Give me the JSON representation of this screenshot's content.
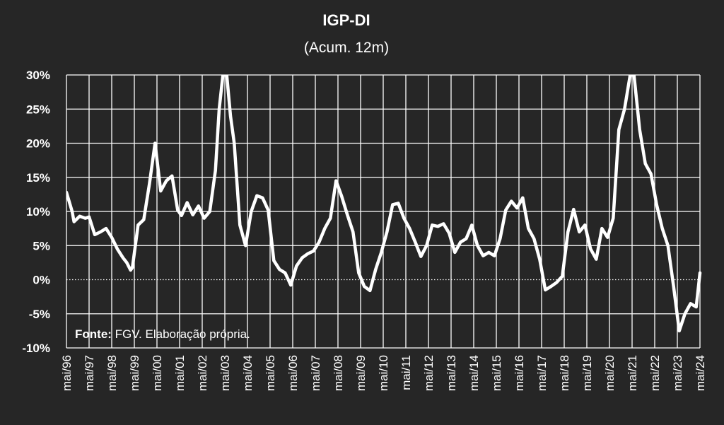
{
  "chart_data": {
    "type": "line",
    "title": "IGP-DI",
    "subtitle": "(Acum. 12m)",
    "xlabel": "",
    "ylabel": "",
    "ylim": [
      -10,
      30
    ],
    "y_unit": "%",
    "y_ticks": [
      "30%",
      "25%",
      "20%",
      "15%",
      "10%",
      "5%",
      "0%",
      "-5%",
      "-10%"
    ],
    "x_ticks": [
      "mai/96",
      "mai/97",
      "mai/98",
      "mai/99",
      "mai/00",
      "mai/01",
      "mai/02",
      "mai/03",
      "mai/04",
      "mai/05",
      "mai/06",
      "mai/07",
      "mai/08",
      "mai/09",
      "mai/10",
      "mai/11",
      "mai/12",
      "mai/13",
      "mai/14",
      "mai/15",
      "mai/16",
      "mai/17",
      "mai/18",
      "mai/19",
      "mai/20",
      "mai/21",
      "mai/22",
      "mai/23",
      "mai/24"
    ],
    "grid": true,
    "zero_line": "dotted",
    "colors": {
      "background": "#262626",
      "line": "#ffffff",
      "grid": "#ffffff"
    },
    "source": {
      "bold": "Fonte:",
      "text": " FGV. Elaboração própria."
    },
    "series": [
      {
        "points": [
          [
            "1996-05",
            12.8
          ],
          [
            "1996-08",
            10.0
          ],
          [
            "1996-09",
            8.5
          ],
          [
            "1996-12",
            9.3
          ],
          [
            "1997-03",
            9.0
          ],
          [
            "1997-05",
            9.2
          ],
          [
            "1997-08",
            6.6
          ],
          [
            "1997-11",
            7.0
          ],
          [
            "1998-02",
            7.5
          ],
          [
            "1998-05",
            6.2
          ],
          [
            "1998-08",
            4.5
          ],
          [
            "1998-11",
            3.2
          ],
          [
            "1999-01",
            2.5
          ],
          [
            "1999-03",
            1.4
          ],
          [
            "1999-04",
            1.8
          ],
          [
            "1999-07",
            8.0
          ],
          [
            "1999-10",
            8.8
          ],
          [
            "2000-01",
            14.0
          ],
          [
            "2000-04",
            20.0
          ],
          [
            "2000-07",
            13.0
          ],
          [
            "2000-10",
            14.5
          ],
          [
            "2001-01",
            15.2
          ],
          [
            "2001-04",
            10.2
          ],
          [
            "2001-06",
            9.4
          ],
          [
            "2001-09",
            11.3
          ],
          [
            "2001-12",
            9.5
          ],
          [
            "2002-03",
            10.8
          ],
          [
            "2002-06",
            9.0
          ],
          [
            "2002-09",
            10.0
          ],
          [
            "2002-12",
            16.0
          ],
          [
            "2003-02",
            25.0
          ],
          [
            "2003-04",
            30.0
          ],
          [
            "2003-06",
            30.0
          ],
          [
            "2003-08",
            24.0
          ],
          [
            "2003-10",
            20.0
          ],
          [
            "2004-01",
            8.0
          ],
          [
            "2004-04",
            5.0
          ],
          [
            "2004-07",
            10.0
          ],
          [
            "2004-10",
            12.3
          ],
          [
            "2005-01",
            12.0
          ],
          [
            "2005-04",
            10.2
          ],
          [
            "2005-07",
            2.8
          ],
          [
            "2005-10",
            1.5
          ],
          [
            "2006-01",
            1.0
          ],
          [
            "2006-04",
            -0.8
          ],
          [
            "2006-07",
            2.0
          ],
          [
            "2006-10",
            3.2
          ],
          [
            "2007-01",
            3.8
          ],
          [
            "2007-04",
            4.2
          ],
          [
            "2007-07",
            5.5
          ],
          [
            "2007-10",
            7.5
          ],
          [
            "2008-01",
            9.0
          ],
          [
            "2008-04",
            14.5
          ],
          [
            "2008-07",
            12.2
          ],
          [
            "2008-10",
            9.5
          ],
          [
            "2009-01",
            7.0
          ],
          [
            "2009-04",
            1.0
          ],
          [
            "2009-07",
            -1.0
          ],
          [
            "2009-10",
            -1.6
          ],
          [
            "2010-01",
            1.5
          ],
          [
            "2010-04",
            4.0
          ],
          [
            "2010-07",
            7.0
          ],
          [
            "2010-10",
            11.0
          ],
          [
            "2011-01",
            11.2
          ],
          [
            "2011-04",
            9.0
          ],
          [
            "2011-07",
            7.5
          ],
          [
            "2011-10",
            5.5
          ],
          [
            "2012-01",
            3.4
          ],
          [
            "2012-04",
            5.0
          ],
          [
            "2012-07",
            8.0
          ],
          [
            "2012-10",
            7.8
          ],
          [
            "2013-01",
            8.2
          ],
          [
            "2013-04",
            6.8
          ],
          [
            "2013-07",
            4.0
          ],
          [
            "2013-10",
            5.5
          ],
          [
            "2014-01",
            6.0
          ],
          [
            "2014-04",
            8.0
          ],
          [
            "2014-07",
            5.0
          ],
          [
            "2014-10",
            3.5
          ],
          [
            "2015-01",
            4.0
          ],
          [
            "2015-04",
            3.5
          ],
          [
            "2015-07",
            6.0
          ],
          [
            "2015-10",
            10.2
          ],
          [
            "2016-01",
            11.5
          ],
          [
            "2016-04",
            10.5
          ],
          [
            "2016-07",
            12.0
          ],
          [
            "2016-10",
            7.5
          ],
          [
            "2017-01",
            6.0
          ],
          [
            "2017-04",
            3.0
          ],
          [
            "2017-07",
            -1.5
          ],
          [
            "2017-10",
            -1.0
          ],
          [
            "2018-01",
            -0.4
          ],
          [
            "2018-04",
            0.5
          ],
          [
            "2018-07",
            7.0
          ],
          [
            "2018-10",
            10.3
          ],
          [
            "2019-01",
            7.0
          ],
          [
            "2019-04",
            8.0
          ],
          [
            "2019-07",
            4.5
          ],
          [
            "2019-10",
            3.0
          ],
          [
            "2020-01",
            7.5
          ],
          [
            "2020-04",
            6.2
          ],
          [
            "2020-07",
            9.0
          ],
          [
            "2020-10",
            22.0
          ],
          [
            "2021-01",
            25.0
          ],
          [
            "2021-04",
            30.0
          ],
          [
            "2021-06",
            30.0
          ],
          [
            "2021-09",
            22.0
          ],
          [
            "2021-12",
            17.0
          ],
          [
            "2022-03",
            15.5
          ],
          [
            "2022-06",
            11.0
          ],
          [
            "2022-09",
            7.5
          ],
          [
            "2022-12",
            5.0
          ],
          [
            "2023-03",
            -1.0
          ],
          [
            "2023-06",
            -7.5
          ],
          [
            "2023-09",
            -5.0
          ],
          [
            "2023-12",
            -3.5
          ],
          [
            "2024-03",
            -4.0
          ],
          [
            "2024-05",
            1.0
          ]
        ]
      }
    ]
  }
}
